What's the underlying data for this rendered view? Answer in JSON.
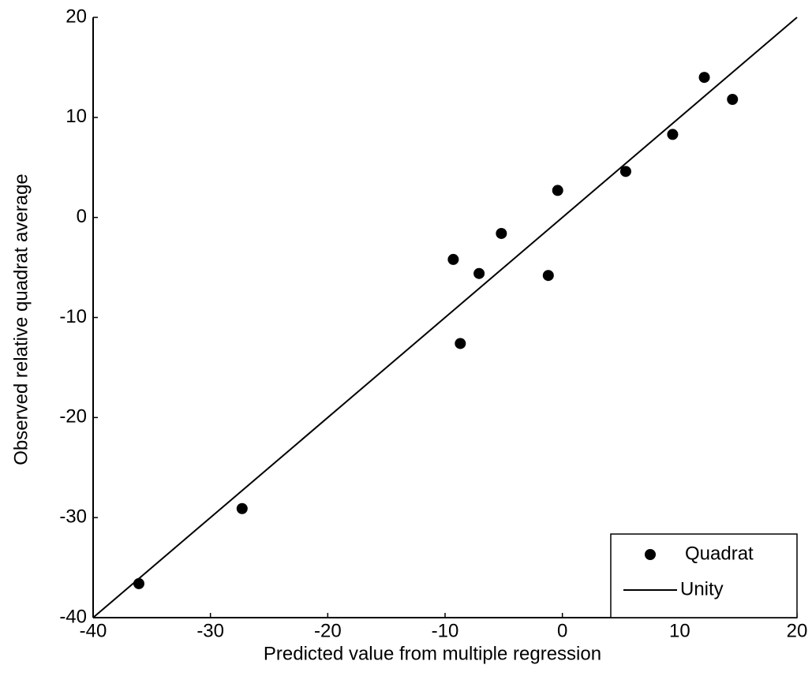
{
  "chart_data": {
    "type": "scatter",
    "x_label": "Predicted value from multiple regression",
    "y_label": "Observed relative quadrat average",
    "xlim": [
      -40,
      20
    ],
    "ylim": [
      -40,
      20
    ],
    "xticks": [
      -40,
      -30,
      -20,
      -10,
      0,
      10,
      20
    ],
    "yticks": [
      -40,
      -30,
      -20,
      -10,
      0,
      10,
      20
    ],
    "legend": "lower right",
    "series": [
      {
        "name": "Quadrat",
        "color": "#000000",
        "line": false,
        "x": [
          -36.1,
          -27.3,
          -9.3,
          -8.7,
          -7.1,
          -5.2,
          -1.2,
          -0.4,
          5.4,
          9.4,
          12.1,
          14.5
        ],
        "values": [
          -36.6,
          -29.1,
          -4.2,
          -12.6,
          -5.6,
          -1.6,
          -5.8,
          2.7,
          4.6,
          8.3,
          14.0,
          11.8
        ]
      },
      {
        "name": "Unity",
        "color": "#000000",
        "line": true,
        "x": [
          -40,
          20
        ],
        "values": [
          -40,
          20
        ]
      }
    ]
  }
}
